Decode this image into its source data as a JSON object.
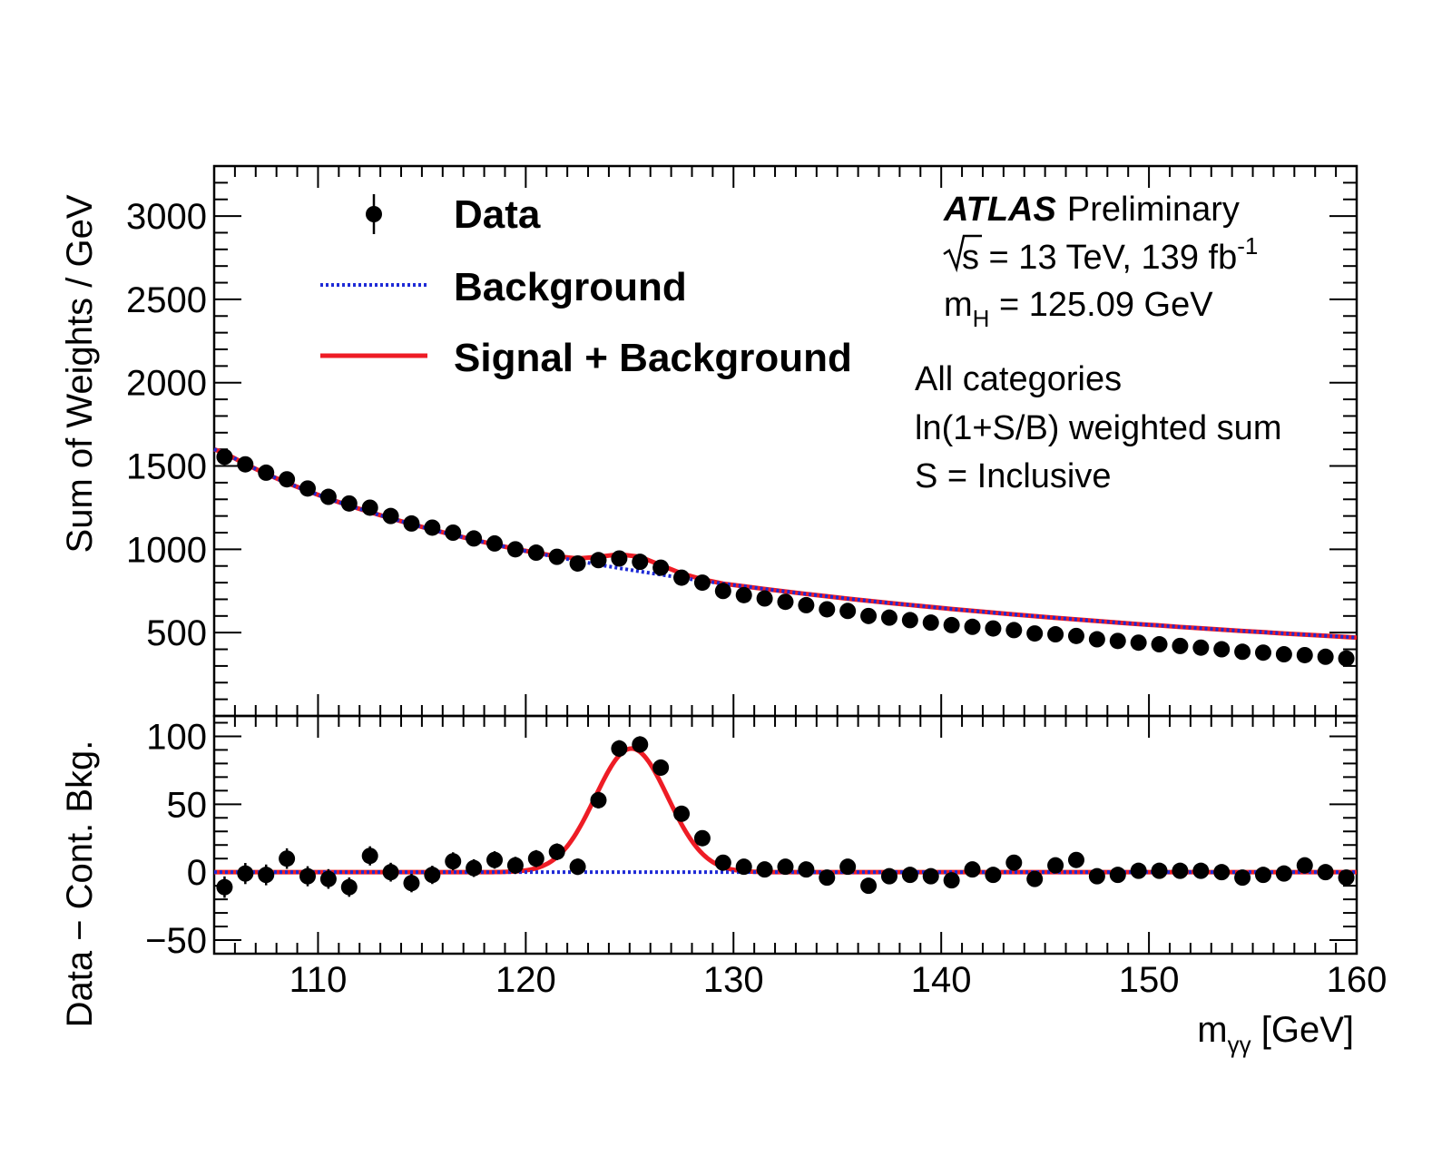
{
  "chart_data": [
    {
      "type": "scatter",
      "panel": "main",
      "ylabel": "Sum of Weights / GeV",
      "xlim": [
        105,
        160
      ],
      "ylim": [
        0,
        3300
      ],
      "yticks": [
        500,
        1000,
        1500,
        2000,
        2500,
        3000
      ],
      "legend": {
        "placement": "top-left",
        "entries": [
          {
            "label": "Data",
            "style": "marker"
          },
          {
            "label": "Background",
            "style": "dotted-line",
            "color": "#1f2bd6"
          },
          {
            "label": "Signal + Background",
            "style": "solid-line",
            "color": "#ee1c25"
          }
        ]
      },
      "annotations": {
        "atlas": "ATLAS",
        "preliminary": "Preliminary",
        "sqrt_s": "s",
        "energy_lumi": " = 13 TeV, 139 fb",
        "lumi_exp": "-1",
        "mh_m": "m",
        "mh_sub": "H",
        "mh_val": " = 125.09 GeV",
        "line1": "All categories",
        "line2": "ln(1+S/B) weighted sum",
        "line3": "S = Inclusive"
      },
      "x": [
        105.5,
        106.5,
        107.5,
        108.5,
        109.5,
        110.5,
        111.5,
        112.5,
        113.5,
        114.5,
        115.5,
        116.5,
        117.5,
        118.5,
        119.5,
        120.5,
        121.5,
        122.5,
        123.5,
        124.5,
        125.5,
        126.5,
        127.5,
        128.5,
        129.5,
        130.5,
        131.5,
        132.5,
        133.5,
        134.5,
        135.5,
        136.5,
        137.5,
        138.5,
        139.5,
        140.5,
        141.5,
        142.5,
        143.5,
        144.5,
        145.5,
        146.5,
        147.5,
        148.5,
        149.5,
        150.5,
        151.5,
        152.5,
        153.5,
        154.5,
        155.5,
        156.5,
        157.5,
        158.5,
        159.5
      ],
      "series": [
        {
          "name": "Data",
          "values": [
            1555,
            1510,
            1460,
            1420,
            1365,
            1315,
            1275,
            1250,
            1200,
            1155,
            1130,
            1100,
            1065,
            1035,
            1000,
            980,
            955,
            915,
            935,
            945,
            925,
            890,
            830,
            800,
            750,
            725,
            705,
            685,
            665,
            640,
            630,
            600,
            590,
            575,
            560,
            545,
            535,
            525,
            515,
            495,
            490,
            480,
            460,
            450,
            440,
            430,
            420,
            410,
            400,
            385,
            380,
            370,
            365,
            355,
            345
          ]
        },
        {
          "name": "Background",
          "values": [
            1578,
            1512,
            1453,
            1399,
            1350,
            1304,
            1262,
            1223,
            1186,
            1151,
            1118,
            1087,
            1057,
            1029,
            1002,
            977,
            953,
            930,
            908,
            887,
            867,
            848,
            829,
            811,
            794,
            778,
            762,
            747,
            732,
            718,
            704,
            691,
            678,
            666,
            654,
            642,
            631,
            620,
            609,
            599,
            589,
            579,
            570,
            560,
            551,
            543,
            534,
            526,
            518,
            510,
            503,
            495,
            488,
            481,
            474
          ]
        },
        {
          "name": "Signal + Background",
          "values": [
            1578,
            1512,
            1453,
            1399,
            1350,
            1304,
            1262,
            1223,
            1186,
            1151,
            1118,
            1087,
            1057,
            1029,
            1002,
            979,
            958,
            945,
            955,
            970,
            955,
            905,
            855,
            820,
            794,
            778,
            762,
            747,
            732,
            718,
            704,
            691,
            678,
            666,
            654,
            642,
            631,
            620,
            609,
            599,
            589,
            579,
            570,
            560,
            551,
            543,
            534,
            526,
            518,
            510,
            503,
            495,
            488,
            481,
            474
          ]
        }
      ]
    },
    {
      "type": "scatter",
      "panel": "ratio",
      "xlabel_main": "m",
      "xlabel_sub": "γγ",
      "xlabel_unit": " [GeV]",
      "ylabel": "Data − Cont. Bkg.",
      "xlim": [
        105,
        160
      ],
      "ylim": [
        -60,
        115
      ],
      "xticks": [
        110,
        120,
        130,
        140,
        150,
        160
      ],
      "yticks": [
        -50,
        0,
        50,
        100
      ],
      "ytick_labels": [
        "−50",
        "0",
        "50",
        "100"
      ],
      "x": [
        105.5,
        106.5,
        107.5,
        108.5,
        109.5,
        110.5,
        111.5,
        112.5,
        113.5,
        114.5,
        115.5,
        116.5,
        117.5,
        118.5,
        119.5,
        120.5,
        121.5,
        122.5,
        123.5,
        124.5,
        125.5,
        126.5,
        127.5,
        128.5,
        129.5,
        130.5,
        131.5,
        132.5,
        133.5,
        134.5,
        135.5,
        136.5,
        137.5,
        138.5,
        139.5,
        140.5,
        141.5,
        142.5,
        143.5,
        144.5,
        145.5,
        146.5,
        147.5,
        148.5,
        149.5,
        150.5,
        151.5,
        152.5,
        153.5,
        154.5,
        155.5,
        156.5,
        157.5,
        158.5,
        159.5
      ],
      "series": [
        {
          "name": "Data",
          "values": [
            -11,
            -1,
            -2,
            10,
            -3,
            -5,
            -11,
            12,
            0,
            -8,
            -2,
            8,
            3,
            9,
            5,
            10,
            15,
            4,
            53,
            91,
            94,
            77,
            43,
            25,
            7,
            4,
            2,
            4,
            2,
            -4,
            4,
            -10,
            -3,
            -2,
            -3,
            -6,
            2,
            -2,
            7,
            -5,
            5,
            9,
            -3,
            -2,
            1,
            1,
            1,
            1,
            0,
            -4,
            -2,
            -1,
            5,
            0,
            -4
          ]
        },
        {
          "name": "Signal + Background",
          "curve": "gaussian",
          "peak": 91,
          "mean": 125.09,
          "sigma": 1.75,
          "baseline": 0
        },
        {
          "name": "Background",
          "curve": "flat",
          "value": 0
        }
      ]
    }
  ],
  "colors": {
    "data": "#000000",
    "background": "#1f2bd6",
    "signal": "#ee1c25"
  }
}
